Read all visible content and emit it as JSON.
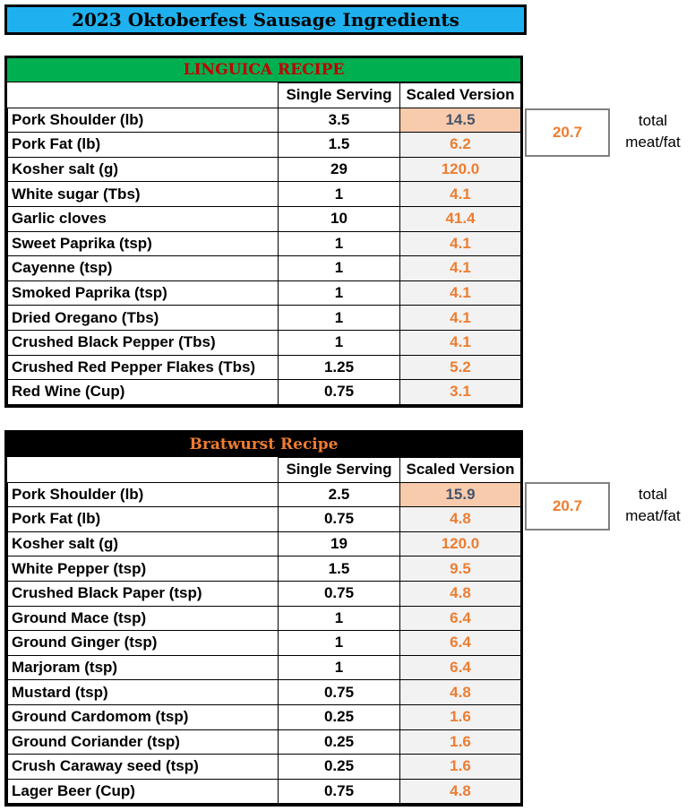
{
  "title": "2023 Oktoberfest Sausage Ingredients",
  "columns": {
    "single": "Single Serving",
    "scaled": "Scaled Version"
  },
  "linguica": {
    "heading": "LINGUICA RECIPE",
    "total_value": "20.7",
    "total_label_1": "total",
    "total_label_2": "meat/fat",
    "rows": [
      {
        "name": "Pork Shoulder (lb)",
        "single": "3.5",
        "scaled": "14.5"
      },
      {
        "name": "Pork Fat (lb)",
        "single": "1.5",
        "scaled": "6.2"
      },
      {
        "name": "Kosher salt (g)",
        "single": "29",
        "scaled": "120.0"
      },
      {
        "name": "White sugar (Tbs)",
        "single": "1",
        "scaled": "4.1"
      },
      {
        "name": "Garlic cloves",
        "single": "10",
        "scaled": "41.4"
      },
      {
        "name": "Sweet Paprika (tsp)",
        "single": "1",
        "scaled": "4.1"
      },
      {
        "name": "Cayenne (tsp)",
        "single": "1",
        "scaled": "4.1"
      },
      {
        "name": "Smoked Paprika (tsp)",
        "single": "1",
        "scaled": "4.1"
      },
      {
        "name": "Dried Oregano (Tbs)",
        "single": "1",
        "scaled": "4.1"
      },
      {
        "name": "Crushed Black Pepper (Tbs)",
        "single": "1",
        "scaled": "4.1"
      },
      {
        "name": "Crushed Red Pepper Flakes (Tbs)",
        "single": "1.25",
        "scaled": "5.2"
      },
      {
        "name": "Red Wine (Cup)",
        "single": "0.75",
        "scaled": "3.1"
      }
    ]
  },
  "bratwurst": {
    "heading": "Bratwurst Recipe",
    "total_value": "20.7",
    "total_label_1": "total",
    "total_label_2": "meat/fat",
    "rows": [
      {
        "name": "Pork Shoulder (lb)",
        "single": "2.5",
        "scaled": "15.9"
      },
      {
        "name": "Pork Fat (lb)",
        "single": "0.75",
        "scaled": "4.8"
      },
      {
        "name": "Kosher salt (g)",
        "single": "19",
        "scaled": "120.0"
      },
      {
        "name": "White Pepper (tsp)",
        "single": "1.5",
        "scaled": "9.5"
      },
      {
        "name": "Crushed Black Paper (tsp)",
        "single": "0.75",
        "scaled": "4.8"
      },
      {
        "name": "Ground Mace (tsp)",
        "single": "1",
        "scaled": "6.4"
      },
      {
        "name": "Ground Ginger (tsp)",
        "single": "1",
        "scaled": "6.4"
      },
      {
        "name": "Marjoram (tsp)",
        "single": "1",
        "scaled": "6.4"
      },
      {
        "name": "Mustard (tsp)",
        "single": "0.75",
        "scaled": "4.8"
      },
      {
        "name": "Ground Cardomom (tsp)",
        "single": "0.25",
        "scaled": "1.6"
      },
      {
        "name": "Ground Coriander (tsp)",
        "single": "0.25",
        "scaled": "1.6"
      },
      {
        "name": "Crush Caraway seed (tsp)",
        "single": "0.25",
        "scaled": "1.6"
      },
      {
        "name": "Lager Beer (Cup)",
        "single": "0.75",
        "scaled": "4.8"
      }
    ]
  },
  "colors": {
    "title_bg": "#1fb1ef",
    "linguica_head_bg": "#00b050",
    "linguica_head_text": "#c00000",
    "bratwurst_head_bg": "#000000",
    "bratwurst_head_text": "#ed7d31",
    "scaled_text": "#ed7d31",
    "highlight_bg": "#f8cbad"
  }
}
